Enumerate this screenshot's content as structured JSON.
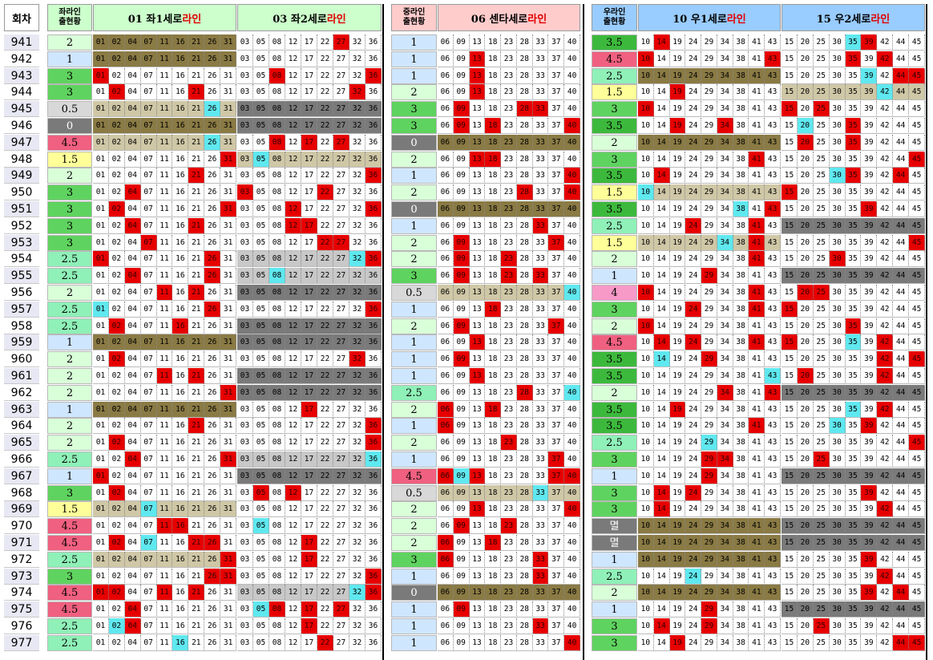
{
  "headers": {
    "round": "회차",
    "left_count": [
      "좌라인",
      "출현황"
    ],
    "left_line1": {
      "prefix": "01 좌1세로",
      "accent": "라인"
    },
    "left_line2": {
      "prefix": "03 좌2세로",
      "accent": "라인"
    },
    "center_count": [
      "중라인",
      "출현황"
    ],
    "center_line": {
      "prefix": "06 센타세로",
      "accent": "라인"
    },
    "right_count": [
      "우라인",
      "출현황"
    ],
    "right_line1": {
      "prefix": "10 우1세로",
      "accent": "라인"
    },
    "right_line2": {
      "prefix": "15 우2세로",
      "accent": "라인"
    }
  },
  "colors": {
    "hit": "#e70000",
    "bonus": "#5fe8ef",
    "olive_band": "#8a7a44",
    "gray_band": "#7a7a7a",
    "beige_band": "#cfc7a6",
    "header_green": "#ccffcc",
    "header_pink": "#ffcccc",
    "header_blue": "#99ccff"
  },
  "groups": {
    "L1": [
      "01",
      "02",
      "04",
      "07",
      "11",
      "16",
      "21",
      "26",
      "31"
    ],
    "L2": [
      "03",
      "05",
      "08",
      "12",
      "17",
      "22",
      "27",
      "32",
      "36"
    ],
    "C": [
      "06",
      "09",
      "13",
      "18",
      "23",
      "28",
      "33",
      "37",
      "40"
    ],
    "R1": [
      "10",
      "14",
      "19",
      "24",
      "29",
      "34",
      "38",
      "41",
      "43"
    ],
    "R2": [
      "15",
      "20",
      "25",
      "30",
      "35",
      "39",
      "42",
      "44",
      "45"
    ]
  },
  "rows": [
    {
      "n": "941",
      "lc": "2",
      "lcc": "#d9ffd9",
      "cc": "1",
      "ccc": "#cfe6ff",
      "rc": "3.5",
      "rcc": "#3cb93c",
      "L1": "ooooooooo",
      "L2": "wwwwwwrww",
      "C": "wwwwwwwww",
      "R1": "wrwwwwwww",
      "R2": "wwwwcrwww"
    },
    {
      "n": "942",
      "lc": "1",
      "lcc": "#cfe6ff",
      "cc": "1",
      "ccc": "#cfe6ff",
      "rc": "4.5",
      "rcc": "#f06080",
      "L1": "ooooooooo",
      "L2": "wwwwwwwww",
      "C": "wwrwwwwww",
      "R1": "rwwwwwwwr",
      "R2": "wwwwrwrww"
    },
    {
      "n": "943",
      "lc": "3",
      "lcc": "#5fd35f",
      "cc": "1",
      "ccc": "#cfe6ff",
      "rc": "2.5",
      "rcc": "#8ff0b8",
      "L1": "rwwwwwwww",
      "L2": "wwrwwwwwr",
      "C": "wwrwwwwww",
      "R1": "ooooooooo",
      "R2": "wwwwwcwrr"
    },
    {
      "n": "944",
      "lc": "3",
      "lcc": "#5fd35f",
      "cc": "2",
      "ccc": "#d9ffd9",
      "rc": "1.5",
      "rcc": "#ffff99",
      "L1": "wrwwwwrww",
      "L2": "wwwwwwwrw",
      "C": "wwrwwwwww",
      "R1": "wwrwwwwww",
      "R2": "bbbbbbcbb"
    },
    {
      "n": "945",
      "lc": "0.5",
      "lcc": "#d8d8d8",
      "cc": "3",
      "ccc": "#5fd35f",
      "rc": "3",
      "rcc": "#5fd35f",
      "L1": "bbbbbbbcb",
      "L2": "ggggggggg",
      "C": "wrwwwrrww",
      "R1": "rwwwwwwww",
      "R2": "rwrwwwwww"
    },
    {
      "n": "946",
      "lc": "0",
      "lcc": "#7a7a7a",
      "cc": "3",
      "ccc": "#5fd35f",
      "rc": "3.5",
      "rcc": "#3cb93c",
      "L1": "ooooooooo",
      "L2": "ggggggggg",
      "C": "wrwrwwwwr",
      "R1": "wwrwwrwww",
      "R2": "wcwwrwwww"
    },
    {
      "n": "947",
      "lc": "4.5",
      "lcc": "#f06080",
      "cc": "0",
      "ccc": "#7a7a7a",
      "rc": "2",
      "rcc": "#d9ffd9",
      "L1": "bbbbbbbcb",
      "L2": "wwrwrwrww",
      "C": "ooooooooo",
      "R1": "ooooooooo",
      "R2": "wrwwrwwww"
    },
    {
      "n": "948",
      "lc": "1.5",
      "lcc": "#ffff99",
      "cc": "2",
      "ccc": "#d9ffd9",
      "rc": "3",
      "rcc": "#5fd35f",
      "L1": "wwwwwwwwr",
      "L2": "bcbbbbbbb",
      "C": "wwrrwwwww",
      "R1": "wwwwwwwrw",
      "R2": "wwwwwwwwr"
    },
    {
      "n": "949",
      "lc": "2",
      "lcc": "#d9ffd9",
      "cc": "1",
      "ccc": "#cfe6ff",
      "rc": "3.5",
      "rcc": "#3cb93c",
      "L1": "wwwwwwrww",
      "L2": "wwwwwwwwr",
      "C": "wwwwwwwwr",
      "R1": "wrwwwwwww",
      "R2": "wwwcrwwrw"
    },
    {
      "n": "950",
      "lc": "3",
      "lcc": "#5fd35f",
      "cc": "2",
      "ccc": "#d9ffd9",
      "rc": "1.5",
      "rcc": "#ffff99",
      "L1": "wwrwwwwww",
      "L2": "rwwwwrwww",
      "C": "wwwwwrwwr",
      "R1": "cbbbbbbbb",
      "R2": "rwwwwwwww"
    },
    {
      "n": "951",
      "lc": "3",
      "lcc": "#5fd35f",
      "cc": "0",
      "ccc": "#7a7a7a",
      "rc": "3.5",
      "rcc": "#3cb93c",
      "L1": "wrwwwwwwr",
      "L2": "wwwrwwwwr",
      "C": "ooooooooo",
      "R1": "wwwwwwcwr",
      "R2": "wwwwwrwww"
    },
    {
      "n": "952",
      "lc": "3",
      "lcc": "#5fd35f",
      "cc": "1",
      "ccc": "#cfe6ff",
      "rc": "2.5",
      "rcc": "#8ff0b8",
      "L1": "wwrwwwrww",
      "L2": "wwwrrwwww",
      "C": "wwwwwwrww",
      "R1": "wwwrwwwrw",
      "R2": "ggggggggg"
    },
    {
      "n": "953",
      "lc": "3",
      "lcc": "#5fd35f",
      "cc": "2",
      "ccc": "#d9ffd9",
      "rc": "1.5",
      "rcc": "#ffff99",
      "L1": "wwwrwwwww",
      "L2": "wwwwwrrww",
      "C": "wrwwwwwrw",
      "R1": "bbbbbcbrb",
      "R2": "wwwwwwwwr"
    },
    {
      "n": "954",
      "lc": "2.5",
      "lcc": "#8ff0b8",
      "cc": "2",
      "ccc": "#d9ffd9",
      "rc": "2",
      "rcc": "#d9ffd9",
      "L1": "rwwwwwwrw",
      "L2": "sssssssct",
      "C": "wrwwrwwww",
      "R1": "wwwwwwwrw",
      "R2": "wwwrwwwww"
    },
    {
      "n": "955",
      "lc": "2.5",
      "lcc": "#8ff0b8",
      "cc": "3",
      "ccc": "#5fd35f",
      "rc": "1",
      "rcc": "#cfe6ff",
      "L1": "wwrwwwwrw",
      "L2": "sscssssss",
      "C": "wrwwrwrww",
      "R1": "wwwwrwwww",
      "R2": "ggggggggg"
    },
    {
      "n": "956",
      "lc": "2",
      "lcc": "#d9ffd9",
      "cc": "0.5",
      "ccc": "#d8d8d8",
      "rc": "4",
      "rcc": "#f79ac8",
      "L1": "wwwwrwrww",
      "L2": "ggggggggg",
      "C": "bbbbbbbbc",
      "R1": "rwwwwwwrw",
      "R2": "wrrwwwwww"
    },
    {
      "n": "957",
      "lc": "2.5",
      "lcc": "#8ff0b8",
      "cc": "1",
      "ccc": "#cfe6ff",
      "rc": "3",
      "rcc": "#5fd35f",
      "L1": "cwwwwwwrw",
      "L2": "wwwwwwwwr",
      "C": "wwwrwwwww",
      "R1": "wwwrwwwrw",
      "R2": "rwwwwwwww"
    },
    {
      "n": "958",
      "lc": "2.5",
      "lcc": "#8ff0b8",
      "cc": "2",
      "ccc": "#d9ffd9",
      "rc": "2",
      "rcc": "#d9ffd9",
      "L1": "wrwwwrwww",
      "L2": "ggggggggg",
      "C": "wrwwwwwrw",
      "R1": "rwwwwwwww",
      "R2": "wwwwrwwww"
    },
    {
      "n": "959",
      "lc": "1",
      "lcc": "#cfe6ff",
      "cc": "1",
      "ccc": "#cfe6ff",
      "rc": "4.5",
      "rcc": "#f06080",
      "L1": "ooooooooo",
      "L2": "ggggggggg",
      "C": "wwrwwwwww",
      "R1": "wrwrwwwrw",
      "R2": "rwwwcwrww"
    },
    {
      "n": "960",
      "lc": "2",
      "lcc": "#d9ffd9",
      "cc": "1",
      "ccc": "#cfe6ff",
      "rc": "3.5",
      "rcc": "#3cb93c",
      "L1": "wrwwwwwww",
      "L2": "wwwwwwwrw",
      "C": "wrwwwwwww",
      "R1": "wcwwrwwww",
      "R2": "wwwwwwrwr"
    },
    {
      "n": "961",
      "lc": "2",
      "lcc": "#d9ffd9",
      "cc": "1",
      "ccc": "#cfe6ff",
      "rc": "3.5",
      "rcc": "#3cb93c",
      "L1": "wwwwrwrww",
      "L2": "ggggggggg",
      "C": "wwrwwwwww",
      "R1": "wwwwwwwwc",
      "R2": "wrwwwwrww"
    },
    {
      "n": "962",
      "lc": "2",
      "lcc": "#d9ffd9",
      "cc": "2.5",
      "ccc": "#8ff0b8",
      "rc": "2",
      "rcc": "#d9ffd9",
      "L1": "wwwwwwwwr",
      "L2": "ggggggggg",
      "C": "wwwwwrwwc",
      "R1": "wwwwwrwwr",
      "R2": "ggggggggg"
    },
    {
      "n": "963",
      "lc": "1",
      "lcc": "#cfe6ff",
      "cc": "2",
      "ccc": "#d9ffd9",
      "rc": "3.5",
      "rcc": "#3cb93c",
      "L1": "ooooooooo",
      "L2": "wwwwrwwww",
      "C": "rwwrwwwww",
      "R1": "wwrwwwwww",
      "R2": "wwwwcwrww"
    },
    {
      "n": "964",
      "lc": "2",
      "lcc": "#d9ffd9",
      "cc": "1",
      "ccc": "#cfe6ff",
      "rc": "3.5",
      "rcc": "#3cb93c",
      "L1": "wwwwwwrww",
      "L2": "wwwwwwwwr",
      "C": "rwwwwwwww",
      "R1": "wwwwwwwrw",
      "R2": "wwwcwrwww"
    },
    {
      "n": "965",
      "lc": "2",
      "lcc": "#d9ffd9",
      "cc": "2",
      "ccc": "#d9ffd9",
      "rc": "2.5",
      "rcc": "#8ff0b8",
      "L1": "wrwwwwwww",
      "L2": "wwwwwwwwr",
      "C": "wwwwrwwww",
      "R1": "wwwwcwwww",
      "R2": "wwwwwwwwr"
    },
    {
      "n": "966",
      "lc": "2.5",
      "lcc": "#8ff0b8",
      "cc": "1",
      "ccc": "#cfe6ff",
      "rc": "3",
      "rcc": "#5fd35f",
      "L1": "wwrwwwwwr",
      "L2": "ssssssssc",
      "C": "wwwwwwwrw",
      "R1": "wwwwrrwww",
      "R2": "wwrwwwwww"
    },
    {
      "n": "967",
      "lc": "1",
      "lcc": "#cfe6ff",
      "cc": "4.5",
      "ccc": "#f06080",
      "rc": "1",
      "rcc": "#cfe6ff",
      "L1": "rwwwwwwww",
      "L2": "ggggggggg",
      "C": "rcrwwwwrr",
      "R1": "wwwwrwwww",
      "R2": "ggggggggg"
    },
    {
      "n": "968",
      "lc": "3",
      "lcc": "#5fd35f",
      "cc": "0.5",
      "ccc": "#d8d8d8",
      "rc": "3",
      "rcc": "#5fd35f",
      "L1": "wrwwwwwww",
      "L2": "wrwrwwwww",
      "C": "bbbbbbcbb",
      "R1": "wrwrwwwww",
      "R2": "wwwwwrwww"
    },
    {
      "n": "969",
      "lc": "1.5",
      "lcc": "#ffff99",
      "cc": "2",
      "ccc": "#d9ffd9",
      "rc": "3",
      "rcc": "#5fd35f",
      "L1": "bbbcbbbbb",
      "L2": "wwwwwwwww",
      "C": "wwrwwwwwr",
      "R1": "wrwwwwwww",
      "R2": "wwwwwwrww"
    },
    {
      "n": "970",
      "lc": "4.5",
      "lcc": "#f06080",
      "cc": "2",
      "ccc": "#d9ffd9",
      "rc": "멸",
      "rcc": "#7a7a7a",
      "L1": "wwwwrrwww",
      "L2": "wcwwwwwww",
      "C": "wrwwrwwww",
      "R1": "ooooooooo",
      "R2": "ggggggggg"
    },
    {
      "n": "971",
      "lc": "4.5",
      "lcc": "#f06080",
      "cc": "2",
      "ccc": "#d9ffd9",
      "rc": "멸",
      "rcc": "#7a7a7a",
      "L1": "wrwcwwrrw",
      "L2": "wwwwrwwww",
      "C": "rwwrwwwww",
      "R1": "ooooooooo",
      "R2": "ggggggggg"
    },
    {
      "n": "972",
      "lc": "2.5",
      "lcc": "#8ff0b8",
      "cc": "3",
      "ccc": "#5fd35f",
      "rc": "1",
      "rcc": "#cfe6ff",
      "L1": "bbbbbbbbr",
      "L2": "wwwwrwwww",
      "C": "rwwwwwrww",
      "R1": "ooooooooo",
      "R2": "wwwwwrwww"
    },
    {
      "n": "973",
      "lc": "3",
      "lcc": "#5fd35f",
      "cc": "1",
      "ccc": "#cfe6ff",
      "rc": "2.5",
      "rcc": "#8ff0b8",
      "L1": "wwwwwwwrr",
      "L2": "wwwwwwwwr",
      "C": "wwwwwwrww",
      "R1": "wwwcwwwww",
      "R2": "wwwwwwrww"
    },
    {
      "n": "974",
      "lc": "4.5",
      "lcc": "#f06080",
      "cc": "0",
      "ccc": "#7a7a7a",
      "rc": "2",
      "rcc": "#d9ffd9",
      "L1": "rrwwrwrww",
      "L2": "sssssssct",
      "C": "ooooooooo",
      "R1": "ooooooooo",
      "R2": "wwwwwrwrw"
    },
    {
      "n": "975",
      "lc": "4.5",
      "lcc": "#f06080",
      "cc": "1",
      "ccc": "#cfe6ff",
      "rc": "1",
      "rcc": "#cfe6ff",
      "L1": "wwrwwwwww",
      "L2": "wcrwrwrww",
      "C": "wrwwwwwww",
      "R1": "wwwwrwwww",
      "R2": "ggggggggg"
    },
    {
      "n": "976",
      "lc": "2.5",
      "lcc": "#8ff0b8",
      "cc": "1",
      "ccc": "#cfe6ff",
      "rc": "3",
      "rcc": "#5fd35f",
      "L1": "wcrwwwwww",
      "L2": "wwwwrwwww",
      "C": "wwwwwwrww",
      "R1": "wrwwrwwww",
      "R2": "wwrwwwwww"
    },
    {
      "n": "977",
      "lc": "2.5",
      "lcc": "#8ff0b8",
      "cc": "1",
      "ccc": "#cfe6ff",
      "rc": "3",
      "rcc": "#5fd35f",
      "L1": "wwwwwcwww",
      "L2": "wwwwwrwww",
      "C": "wwwwwwwwr",
      "R1": "wwrwwwwww",
      "R2": "wwwwwwwrr"
    }
  ]
}
